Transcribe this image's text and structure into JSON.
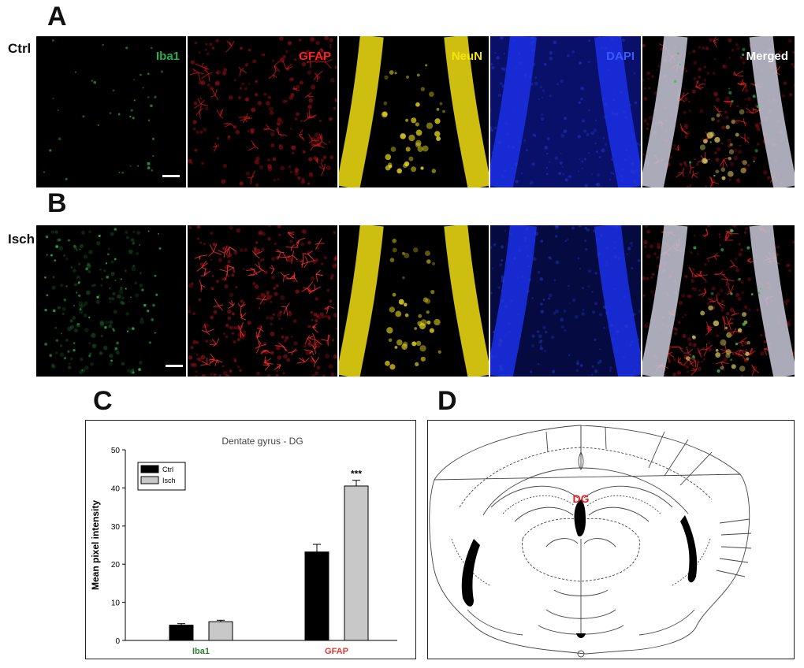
{
  "panel_letters": {
    "a": "A",
    "b": "B",
    "c": "C",
    "d": "D"
  },
  "rows": [
    {
      "label": "Ctrl"
    },
    {
      "label": "Isch"
    }
  ],
  "channels": [
    {
      "label": "Iba1",
      "color": "#22b14c"
    },
    {
      "label": "GFAP",
      "color": "#ff2020"
    },
    {
      "label": "NeuN",
      "color": "#f5e60a"
    },
    {
      "label": "DAPI",
      "color": "#3a5bff"
    },
    {
      "label": "Merged",
      "color": "#ffffff"
    }
  ],
  "chart_data": {
    "type": "bar",
    "title": "Dentate gyrus - DG",
    "ylabel": "Mean pixel intensity",
    "xlabel": "",
    "ylim": [
      0,
      50
    ],
    "yticks": [
      0,
      10,
      20,
      30,
      40,
      50
    ],
    "categories": [
      "Iba1",
      "GFAP"
    ],
    "category_colors": [
      "#2e7d32",
      "#e53935"
    ],
    "series": [
      {
        "name": "Ctrl",
        "color": "#000000",
        "values": [
          4.0,
          23.2
        ],
        "errors": [
          0.4,
          2.0
        ]
      },
      {
        "name": "Isch",
        "color": "#c8c8c8",
        "values": [
          4.9,
          40.5
        ],
        "errors": [
          0.4,
          1.5
        ]
      }
    ],
    "annotations": [
      {
        "text": "***",
        "series": "Isch",
        "category": "GFAP"
      }
    ],
    "legend_position": "top-left"
  },
  "diagram": {
    "region_label": "DG",
    "region_label_color": "#e02020"
  }
}
